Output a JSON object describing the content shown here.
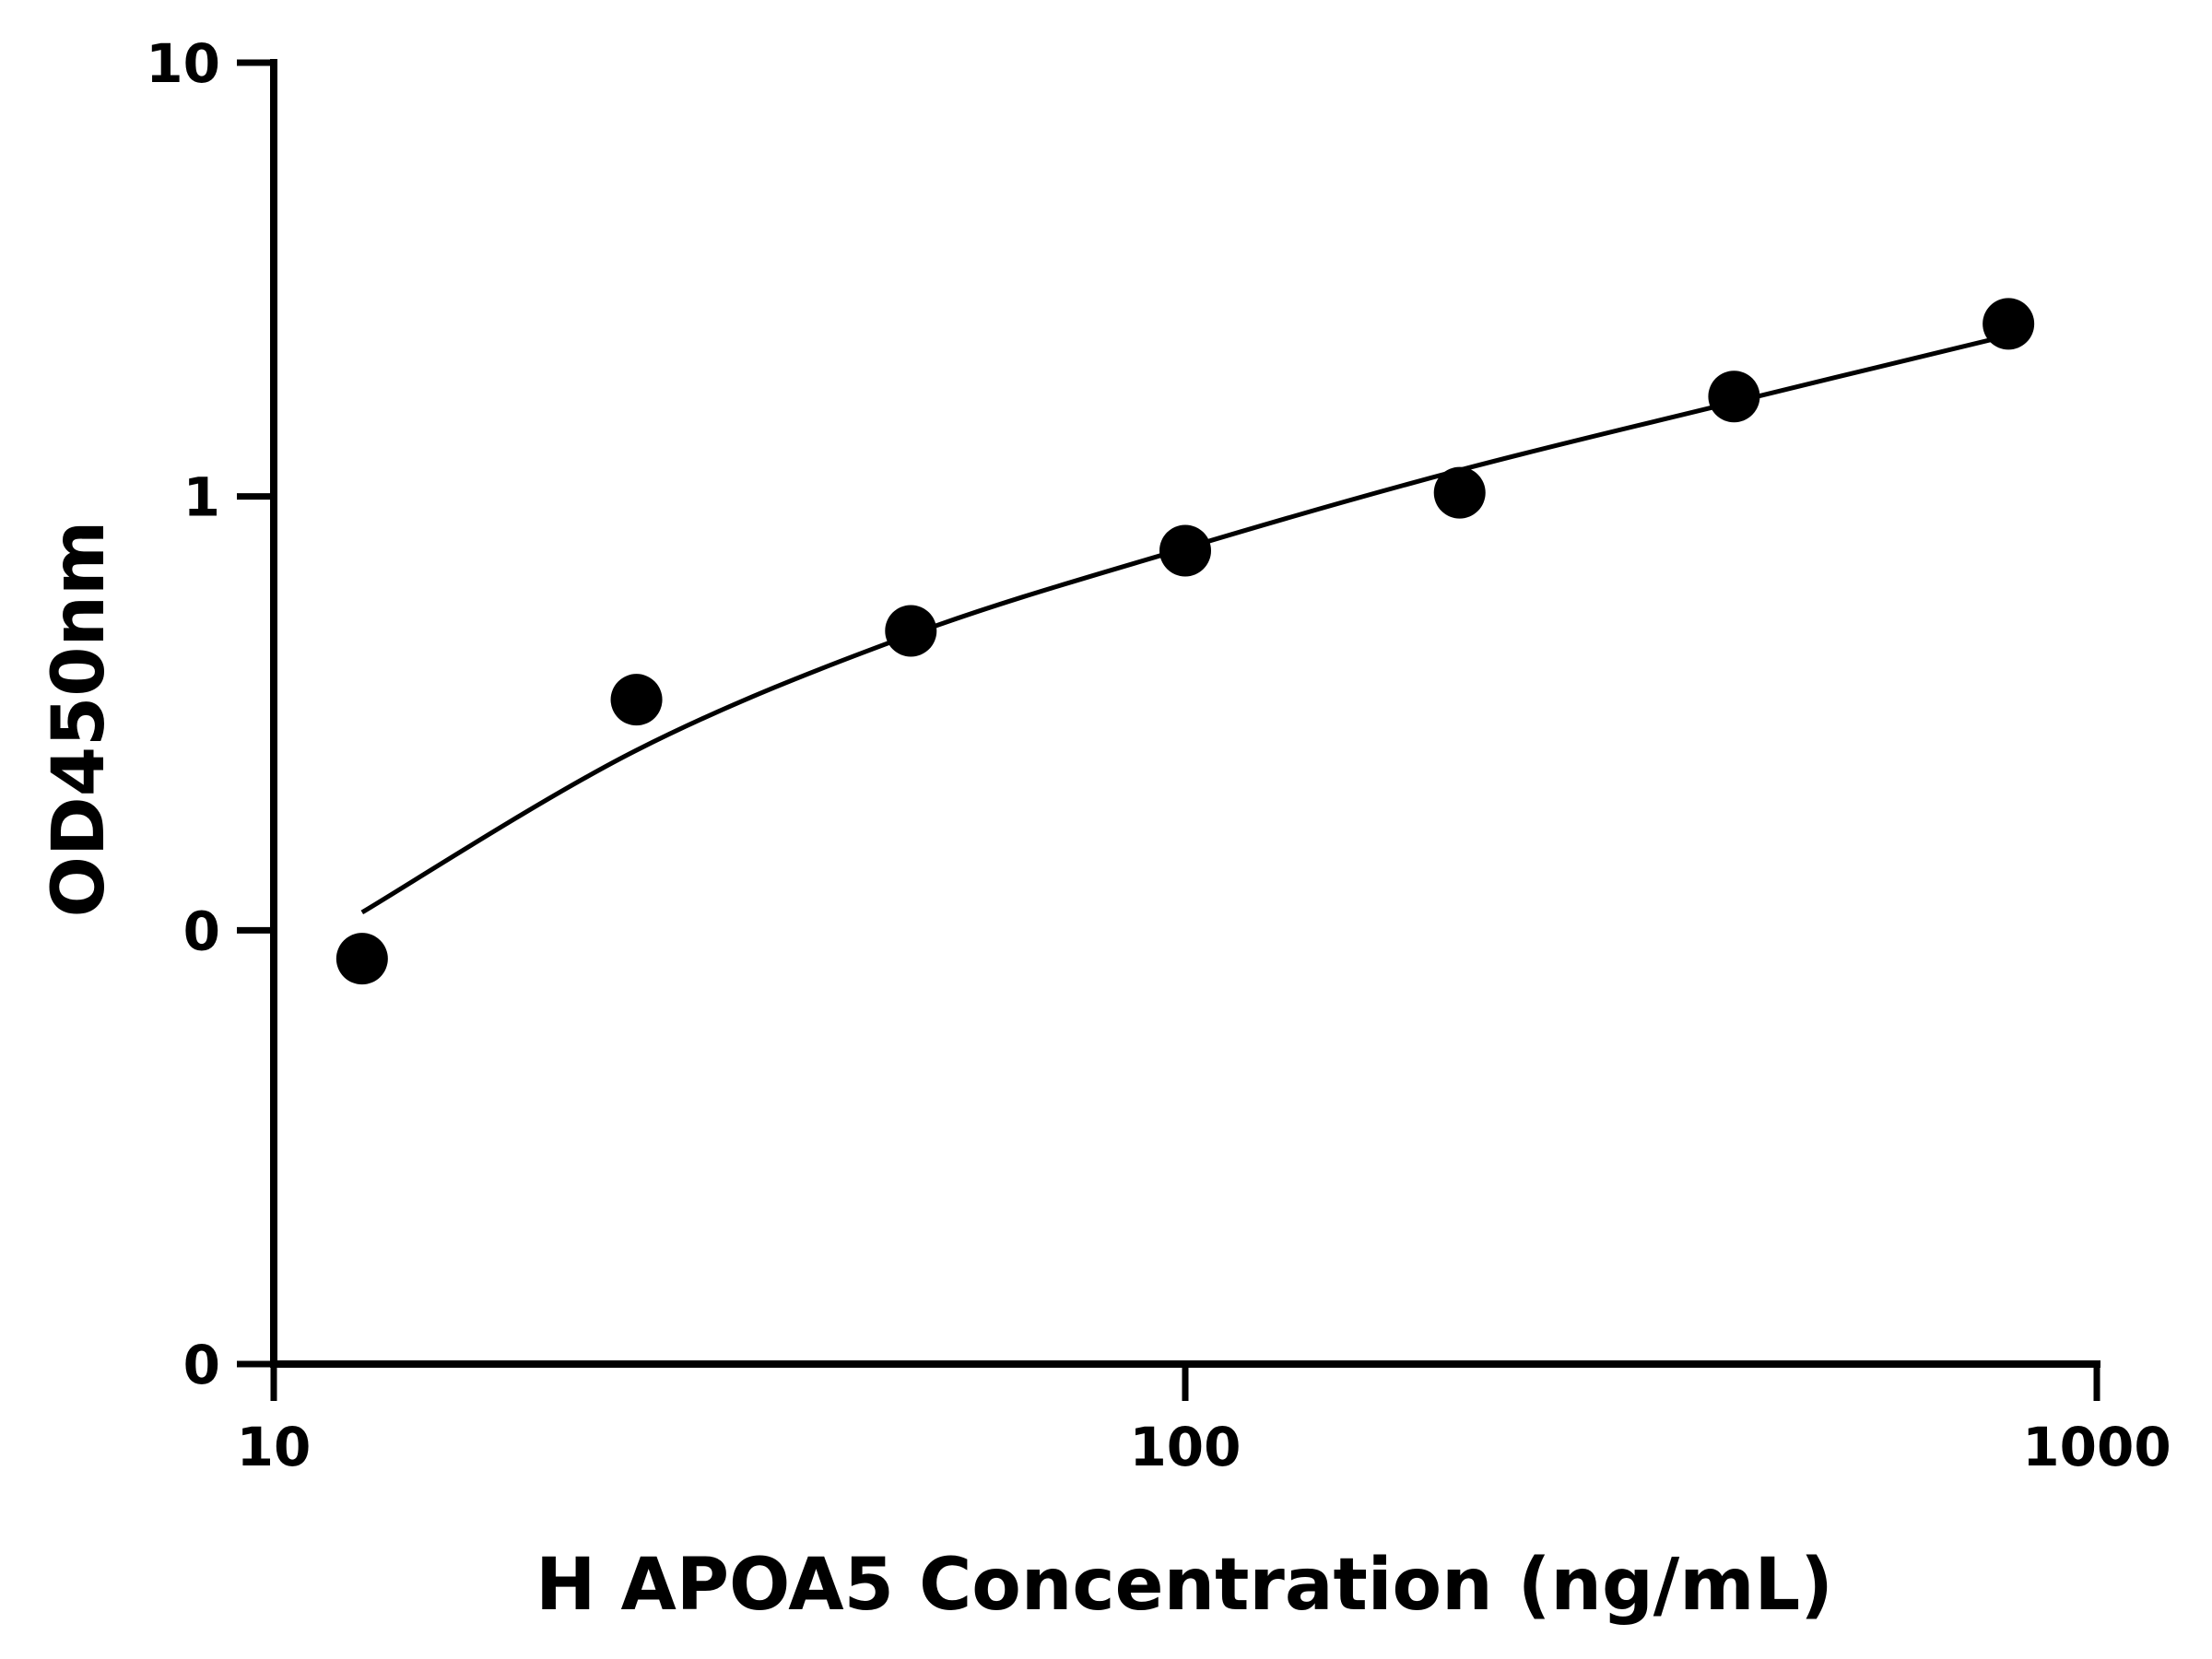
{
  "chart_data": {
    "type": "scatter",
    "title": "",
    "xlabel": "H APOA5 Concentration (ng/mL)",
    "ylabel": "OD450nm",
    "x_scale": "log",
    "y_scale": "log",
    "xlim": [
      10,
      1000
    ],
    "ylim": [
      0.01,
      10
    ],
    "grid": false,
    "x_ticks": [
      {
        "value": 10,
        "label": "10"
      },
      {
        "value": 100,
        "label": "100"
      },
      {
        "value": 1000,
        "label": "1000"
      }
    ],
    "y_ticks": [
      {
        "value": 0.01,
        "label": "0"
      },
      {
        "value": 0.1,
        "label": "0"
      },
      {
        "value": 1,
        "label": "1"
      },
      {
        "value": 10,
        "label": "10"
      }
    ],
    "series": [
      {
        "type": "scatter",
        "x": [
          12.5,
          25,
          50,
          100,
          200,
          400,
          800
        ],
        "y": [
          0.086,
          0.34,
          0.49,
          0.75,
          1.02,
          1.7,
          2.5
        ]
      },
      {
        "type": "line",
        "x": [
          12.5,
          25,
          50,
          100,
          200,
          400,
          800
        ],
        "y": [
          0.11,
          0.26,
          0.48,
          0.76,
          1.15,
          1.65,
          2.35
        ]
      }
    ],
    "colors": {
      "marker": "#000000",
      "line": "#000000",
      "axis": "#000000"
    }
  }
}
